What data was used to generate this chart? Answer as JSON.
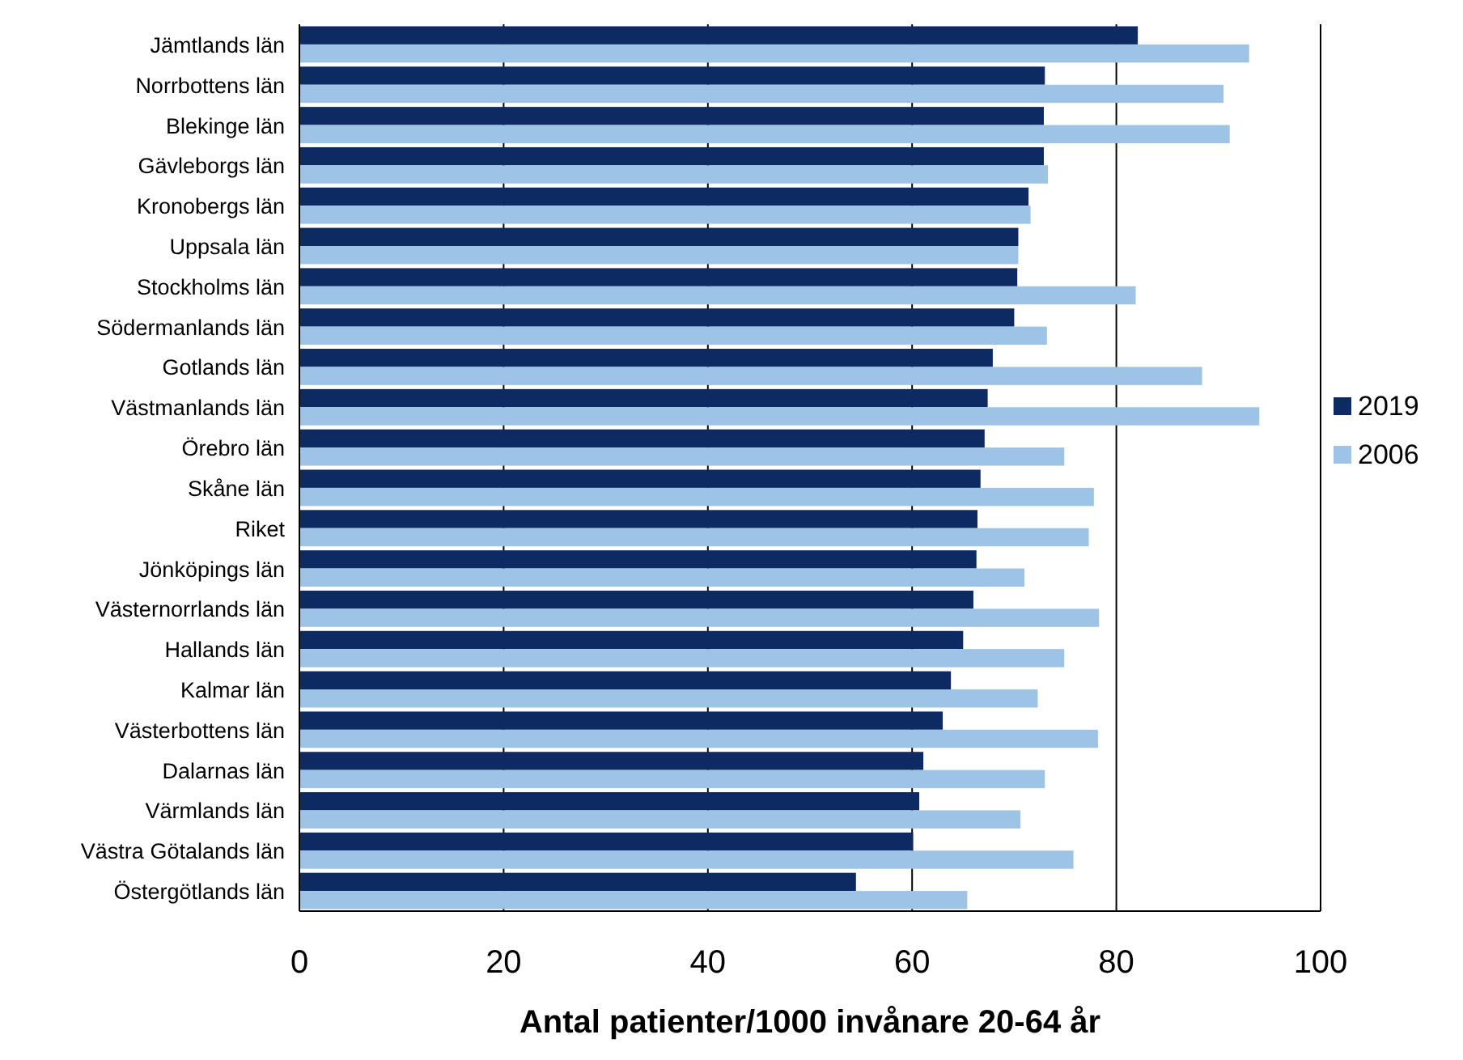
{
  "chart_data": {
    "type": "bar",
    "orientation": "horizontal",
    "xlabel": "Antal patienter/1000 invånare 20-64 år",
    "categories": [
      "Jämtlands län",
      "Norrbottens län",
      "Blekinge län",
      "Gävleborgs län",
      "Kronobergs län",
      "Uppsala län",
      "Stockholms län",
      "Södermanlands län",
      "Gotlands län",
      "Västmanlands län",
      "Örebro län",
      "Skåne län",
      "Riket",
      "Jönköpings län",
      "Västernorrlands län",
      "Hallands län",
      "Kalmar län",
      "Västerbottens län",
      "Dalarnas län",
      "Värmlands län",
      "Västra Götalands län",
      "Östergötlands län"
    ],
    "series": [
      {
        "name": "2019",
        "color": "#0e2a63",
        "values": [
          82.1,
          73.0,
          72.9,
          72.9,
          71.4,
          70.4,
          70.3,
          70.0,
          67.9,
          67.4,
          67.1,
          66.7,
          66.4,
          66.3,
          66.0,
          65.0,
          63.8,
          63.0,
          61.1,
          60.7,
          60.1,
          54.5
        ]
      },
      {
        "name": "2006",
        "color": "#9dc3e6",
        "values": [
          93.0,
          90.5,
          91.1,
          73.3,
          71.6,
          70.4,
          81.9,
          73.2,
          88.4,
          94.0,
          74.9,
          77.8,
          77.3,
          71.0,
          78.3,
          74.9,
          72.3,
          78.2,
          73.0,
          70.6,
          75.8,
          65.4
        ]
      }
    ],
    "xlim": [
      0,
      100
    ],
    "xticks": [
      0,
      20,
      40,
      60,
      80,
      100
    ],
    "grid": "x",
    "legend": "right"
  }
}
